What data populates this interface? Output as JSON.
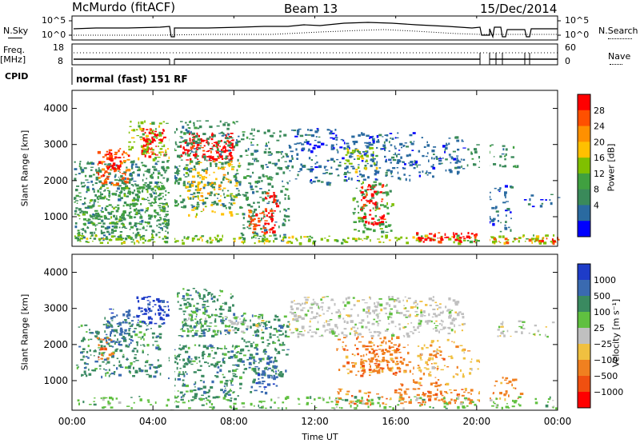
{
  "header": {
    "station": "McMurdo (fitACF)",
    "beam": "Beam 13",
    "date": "15/Dec/2014"
  },
  "top_panels": {
    "nsky_label": "N.Sky",
    "nsearch_label": "N.Search",
    "freq_label_line1": "Freq.",
    "freq_label_line2": "[MHz]",
    "nave_label": "Nave",
    "cpid_label": "CPID",
    "cpid_text": "normal (fast) 151 RF",
    "noise_ticks_left": [
      "10^5",
      "10^0"
    ],
    "noise_ticks_right": [
      "10^5",
      "10^0"
    ],
    "freq_ticks": [
      "18",
      "8"
    ],
    "nave_ticks": [
      "60",
      "0"
    ]
  },
  "chart_data": [
    {
      "type": "heatmap",
      "name": "power",
      "ylabel": "Slant Range [km]",
      "ylim": [
        180,
        4500
      ],
      "yticks": [
        "1000",
        "2000",
        "3000",
        "4000"
      ],
      "colorbar_label": "Power [dB]",
      "colorbar_ticks": [
        "28",
        "24",
        "20",
        "16",
        "12",
        "8",
        "4"
      ],
      "colorbar_colors": [
        "#ff0000",
        "#ff5000",
        "#ff9000",
        "#ffc000",
        "#80c000",
        "#40a040",
        "#3a8a5a",
        "#2a6aa0",
        "#0000ff"
      ],
      "colorbar_order": "top-to-bottom"
    },
    {
      "type": "heatmap",
      "name": "velocity",
      "ylabel": "Slant Range [km]",
      "ylim": [
        180,
        4500
      ],
      "yticks": [
        "1000",
        "2000",
        "3000",
        "4000"
      ],
      "colorbar_label": "Velocity [m s⁻¹]",
      "colorbar_ticks": [
        "1000",
        "500",
        "100",
        "25",
        "−25",
        "−100",
        "−500",
        "−1000"
      ],
      "colorbar_colors": [
        "#1e3cc8",
        "#3a6ab0",
        "#3a8a60",
        "#60c040",
        "#c0c0c0",
        "#f0c040",
        "#f08020",
        "#f05010",
        "#ff0000"
      ],
      "colorbar_order": "top-to-bottom"
    }
  ],
  "xaxis": {
    "label": "Time UT",
    "ticks": [
      "00:00",
      "04:00",
      "08:00",
      "12:00",
      "16:00",
      "20:00",
      "00:00"
    ]
  }
}
